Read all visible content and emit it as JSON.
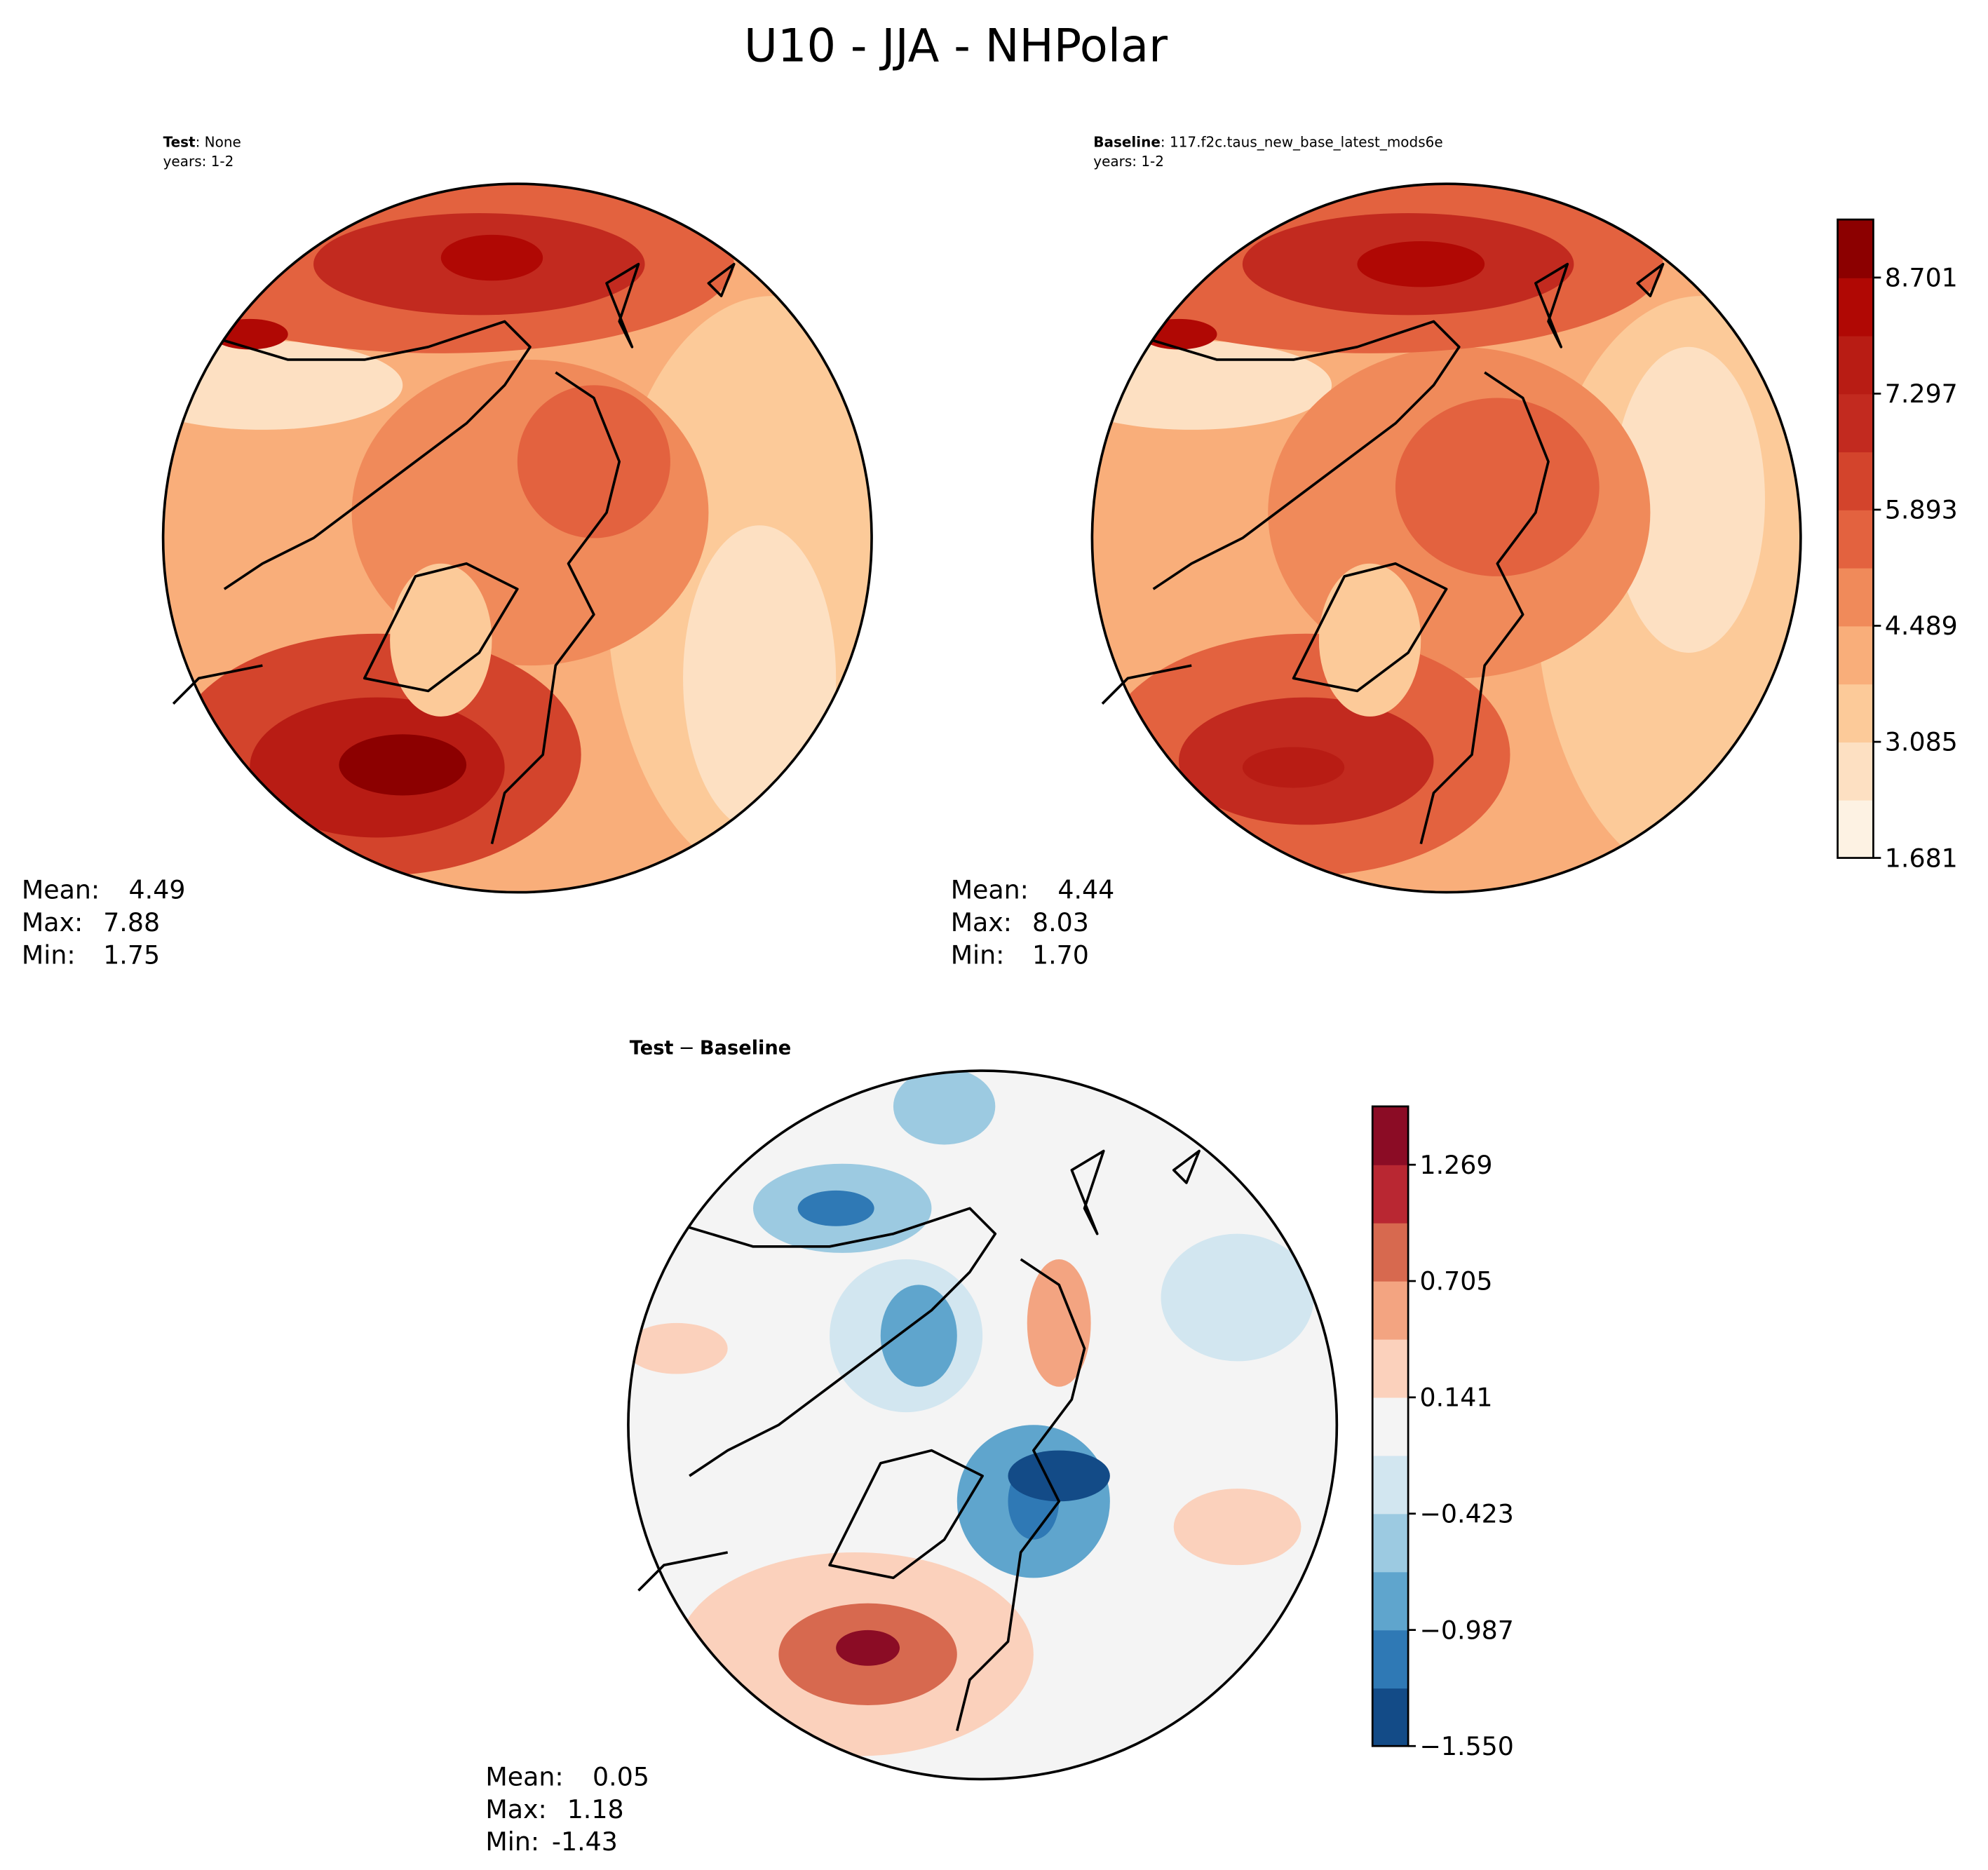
{
  "title": "U10 - JJA - NHPolar",
  "panels": [
    {
      "title_bold": "Test",
      "title_rest": ": None",
      "years": "years: 1-2",
      "stats": [
        {
          "label": "Mean:",
          "value": "4.49"
        },
        {
          "label": "Max:",
          "value": "7.88"
        },
        {
          "label": "Min:",
          "value": "1.75"
        }
      ]
    },
    {
      "title_bold": "Baseline",
      "title_rest": ": 117.f2c.taus_new_base_latest_mods6e",
      "years": "years: 1-2",
      "stats": [
        {
          "label": "Mean:",
          "value": "4.44"
        },
        {
          "label": "Max:",
          "value": "8.03"
        },
        {
          "label": "Min:",
          "value": "1.70"
        }
      ]
    },
    {
      "title_bold": "Test",
      "title_sep": "−",
      "title_bold2": "Baseline",
      "stats": [
        {
          "label": "Mean:",
          "value": "0.05"
        },
        {
          "label": "Max:",
          "value": "1.18"
        },
        {
          "label": "Min:",
          "value": "-1.43"
        }
      ]
    }
  ],
  "colorbars": [
    {
      "lim": [
        1.681,
        9.403
      ],
      "ticks": [
        1.681,
        3.085,
        4.489,
        5.893,
        7.297,
        8.701
      ],
      "colors": [
        "#fdf2e3",
        "#fde0c2",
        "#fcca99",
        "#f9ae7a",
        "#f08a5a",
        "#e3623f",
        "#d3442c",
        "#c22a1f",
        "#b81c14",
        "#b00804",
        "#8c0000"
      ]
    },
    {
      "lim": [
        -1.55,
        1.552
      ],
      "ticks": [
        {
          "value": -1.55,
          "label": "−1.550"
        },
        {
          "value": -0.987,
          "label": "−0.987"
        },
        {
          "value": -0.423,
          "label": "−0.423"
        },
        0.141,
        0.705,
        1.269
      ],
      "colors": [
        "#134b87",
        "#2f79b5",
        "#5fa5cd",
        "#9ccae1",
        "#d2e6f0",
        "#f4f4f4",
        "#fbd1bc",
        "#f3a481",
        "#d7694f",
        "#b92732",
        "#8b0c25"
      ]
    }
  ]
}
